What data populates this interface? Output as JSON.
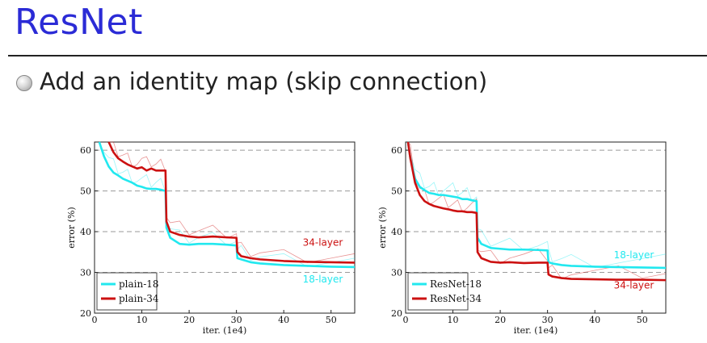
{
  "slide": {
    "title": "ResNet",
    "bullet": "Add an identity map (skip connection)"
  },
  "colors": {
    "title": "#2b2bd6",
    "cyan": "#22e8ef",
    "red": "#cc1111"
  },
  "chart_data": [
    {
      "type": "line",
      "xlabel": "iter. (1e4)",
      "ylabel": "error (%)",
      "xlim": [
        0,
        55
      ],
      "ylim": [
        20,
        62
      ],
      "xticks": [
        0,
        10,
        20,
        30,
        40,
        50
      ],
      "yticks": [
        20,
        30,
        40,
        50,
        60
      ],
      "grid": "dashed horizontal",
      "legend_position": "bottom-left",
      "series": [
        {
          "name": "plain-18",
          "color": "#22e8ef",
          "x": [
            1,
            2,
            3,
            4,
            5,
            6,
            7,
            8,
            9,
            10,
            11,
            12,
            13,
            14,
            15,
            15.2,
            16,
            18,
            20,
            22,
            25,
            28,
            30,
            30.2,
            31,
            33,
            35,
            40,
            45,
            50,
            55
          ],
          "y": [
            62,
            58.5,
            56,
            54.5,
            53.8,
            53,
            52.5,
            52,
            51.3,
            51,
            50.6,
            50.5,
            50.5,
            50.3,
            50,
            41,
            38.5,
            37,
            36.8,
            37,
            37,
            36.8,
            36.6,
            33.5,
            33.2,
            32.5,
            32.2,
            31.8,
            31.6,
            31.4,
            31.3
          ]
        },
        {
          "name": "plain-34",
          "color": "#cc1111",
          "x": [
            3,
            4,
            5,
            6,
            7,
            8,
            9,
            10,
            11,
            12,
            13,
            14,
            15,
            15.2,
            16,
            18,
            20,
            22,
            25,
            28,
            30,
            30.2,
            31,
            33,
            35,
            40,
            45,
            50,
            55
          ],
          "y": [
            62,
            59.5,
            58,
            57.2,
            56.5,
            56,
            55.5,
            55.8,
            55,
            55.5,
            55,
            55,
            55,
            42.5,
            40,
            39.2,
            38.8,
            38.6,
            38.8,
            38.6,
            38.5,
            35,
            34,
            33.5,
            33.2,
            32.8,
            32.6,
            32.5,
            32.4
          ]
        }
      ],
      "annotations": [
        {
          "text": "34-layer",
          "x": 44,
          "y": 36.5,
          "color": "#cc1111"
        },
        {
          "text": "18-layer",
          "x": 44,
          "y": 27.5,
          "color": "#22e8ef"
        }
      ]
    },
    {
      "type": "line",
      "xlabel": "iter. (1e4)",
      "ylabel": "error (%)",
      "xlim": [
        0,
        55
      ],
      "ylim": [
        20,
        62
      ],
      "xticks": [
        0,
        10,
        20,
        30,
        40,
        50
      ],
      "yticks": [
        20,
        30,
        40,
        50,
        60
      ],
      "grid": "dashed horizontal",
      "legend_position": "bottom-left",
      "series": [
        {
          "name": "ResNet-18",
          "color": "#22e8ef",
          "x": [
            0.5,
            1,
            2,
            3,
            4,
            5,
            6,
            7,
            8,
            9,
            10,
            11,
            12,
            13,
            14,
            15,
            15.2,
            16,
            18,
            20,
            22,
            25,
            28,
            30,
            30.2,
            31,
            33,
            35,
            40,
            45,
            50,
            55
          ],
          "y": [
            64,
            58,
            53,
            51,
            50.2,
            49.5,
            49.3,
            49,
            49,
            48.8,
            48.6,
            48.4,
            48,
            48,
            47.7,
            47.5,
            38.5,
            37,
            36,
            35.8,
            35.6,
            35.6,
            35.5,
            35.4,
            32.5,
            32.2,
            31.8,
            31.6,
            31.4,
            31.3,
            31.2,
            31.1
          ]
        },
        {
          "name": "ResNet-34",
          "color": "#cc1111",
          "x": [
            0.5,
            1,
            2,
            3,
            4,
            5,
            6,
            7,
            8,
            9,
            10,
            11,
            12,
            13,
            14,
            15,
            15.2,
            16,
            18,
            20,
            22,
            25,
            28,
            30,
            30.2,
            31,
            33,
            35,
            40,
            45,
            50,
            55
          ],
          "y": [
            64,
            58,
            52,
            49,
            47.5,
            46.8,
            46.3,
            46,
            45.7,
            45.5,
            45.2,
            45,
            45,
            44.8,
            44.8,
            44.6,
            35,
            33.5,
            32.6,
            32.4,
            32.5,
            32.3,
            32.4,
            32.4,
            29.5,
            29,
            28.6,
            28.4,
            28.3,
            28.2,
            28.2,
            28.1
          ]
        }
      ],
      "annotations": [
        {
          "text": "18-layer",
          "x": 44,
          "y": 33.5,
          "color": "#22e8ef"
        },
        {
          "text": "34-layer",
          "x": 44,
          "y": 26,
          "color": "#cc1111"
        }
      ]
    }
  ]
}
